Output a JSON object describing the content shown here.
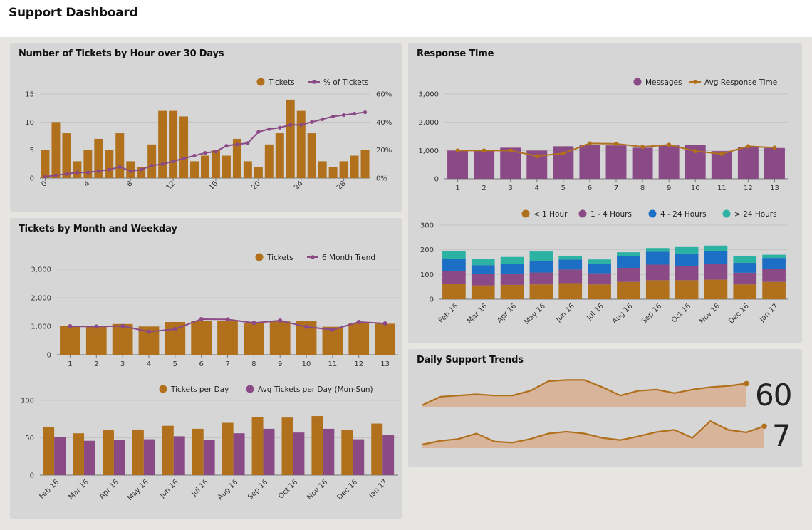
{
  "header": {
    "title": "Support Dashboard"
  },
  "colors": {
    "orange": "#b0701c",
    "purple": "#8a4a86",
    "blue": "#1c6fc4",
    "teal": "#2bb2a3",
    "fill": "#d7b49a"
  },
  "panels": {
    "tickets_by_hour": {
      "title": "Number of Tickets by Hour over 30 Days"
    },
    "tickets_by_month": {
      "title": "Tickets by Month and Weekday"
    },
    "response_time": {
      "title": "Response Time"
    },
    "daily_trends": {
      "title": "Daily Support Trends",
      "value1": "60",
      "value2": "7"
    }
  },
  "chart_data": [
    {
      "id": "hour",
      "type": "bar",
      "x": [
        0,
        1,
        2,
        3,
        4,
        5,
        6,
        7,
        8,
        9,
        10,
        11,
        12,
        13,
        14,
        15,
        16,
        17,
        18,
        19,
        20,
        21,
        22,
        23,
        24,
        25,
        26,
        27,
        28,
        29,
        30
      ],
      "series": [
        {
          "name": "Tickets",
          "type": "bar",
          "axis": "left",
          "values": [
            5,
            10,
            8,
            3,
            5,
            7,
            5,
            8,
            3,
            2,
            6,
            12,
            12,
            11,
            3,
            4,
            5,
            4,
            7,
            3,
            2,
            6,
            8,
            14,
            12,
            8,
            3,
            2,
            3,
            4,
            5
          ]
        },
        {
          "name": "% of Tickets",
          "type": "line",
          "axis": "right",
          "values": [
            1,
            2,
            3,
            4,
            4,
            5,
            6,
            8,
            5,
            6,
            9,
            10,
            12,
            14,
            16,
            18,
            19,
            23,
            24,
            25,
            33,
            35,
            36,
            38,
            38,
            40,
            42,
            44,
            45,
            46,
            47
          ]
        }
      ],
      "xticks": [
        "0",
        "4",
        "8",
        "12",
        "16",
        "20",
        "24",
        "28"
      ],
      "yticks_left": [
        "0",
        "5",
        "10",
        "15"
      ],
      "ylim_left": [
        0,
        15
      ],
      "yticks_right": [
        "0%",
        "20%",
        "40%",
        "60%"
      ],
      "ylim_right": [
        0,
        60
      ]
    },
    {
      "id": "weekday",
      "type": "bar",
      "categories": [
        "1",
        "2",
        "3",
        "4",
        "5",
        "6",
        "7",
        "8",
        "9",
        "10",
        "11",
        "12",
        "13"
      ],
      "series": [
        {
          "name": "Tickets",
          "type": "bar",
          "values": [
            1000,
            1000,
            1080,
            990,
            1150,
            1200,
            1180,
            1100,
            1170,
            1200,
            980,
            1120,
            1090
          ]
        },
        {
          "name": "6 Month Trend",
          "type": "line",
          "values": [
            1000,
            990,
            1010,
            810,
            900,
            1250,
            1240,
            1120,
            1200,
            980,
            880,
            1150,
            1100
          ]
        }
      ],
      "yticks": [
        "0",
        "1,000",
        "2,000",
        "3,000"
      ],
      "ylim": [
        0,
        3000
      ]
    },
    {
      "id": "perday",
      "type": "bar",
      "categories": [
        "Feb 16",
        "Mar 16",
        "Apr 16",
        "May 16",
        "Jun 16",
        "Jul 16",
        "Aug 16",
        "Sep 16",
        "Oct 16",
        "Nov 16",
        "Dec 16",
        "Jan 17"
      ],
      "series": [
        {
          "name": "Tickets per Day",
          "values": [
            64,
            56,
            60,
            61,
            66,
            62,
            70,
            78,
            77,
            79,
            60,
            69
          ]
        },
        {
          "name": "Avg Tickets per Day (Mon-Sun)",
          "values": [
            51,
            46,
            47,
            48,
            52,
            47,
            56,
            62,
            57,
            62,
            48,
            54
          ]
        }
      ],
      "yticks": [
        "0",
        "50",
        "100"
      ],
      "ylim": [
        0,
        125
      ]
    },
    {
      "id": "response",
      "type": "bar",
      "categories": [
        "1",
        "2",
        "3",
        "4",
        "5",
        "6",
        "7",
        "8",
        "9",
        "10",
        "11",
        "12",
        "13"
      ],
      "series": [
        {
          "name": "Messages",
          "type": "bar",
          "values": [
            1000,
            1000,
            1100,
            1000,
            1150,
            1200,
            1180,
            1100,
            1180,
            1200,
            980,
            1120,
            1090
          ]
        },
        {
          "name": "Avg Response Time",
          "type": "line",
          "values": [
            1000,
            1000,
            1000,
            800,
            900,
            1250,
            1240,
            1130,
            1200,
            980,
            880,
            1150,
            1100
          ]
        }
      ],
      "yticks": [
        "0",
        "1,000",
        "2,000",
        "3,000"
      ],
      "ylim": [
        0,
        3000
      ]
    },
    {
      "id": "stacked",
      "type": "bar",
      "stacked": true,
      "categories": [
        "Feb 16",
        "Mar 16",
        "Apr 16",
        "May 16",
        "Jun 16",
        "Jul 16",
        "Aug 16",
        "Sep 16",
        "Oct 16",
        "Nov 16",
        "Dec 16",
        "Jan 17"
      ],
      "series": [
        {
          "name": "< 1 Hour",
          "values": [
            62,
            56,
            58,
            60,
            65,
            60,
            70,
            77,
            77,
            79,
            60,
            70
          ]
        },
        {
          "name": "1 - 4 Hours",
          "values": [
            52,
            45,
            46,
            48,
            55,
            45,
            57,
            63,
            57,
            63,
            47,
            52
          ]
        },
        {
          "name": "4 - 24 Hours",
          "values": [
            50,
            37,
            40,
            45,
            40,
            37,
            48,
            52,
            50,
            52,
            40,
            45
          ]
        },
        {
          "name": "> 24 Hours",
          "values": [
            31,
            25,
            27,
            40,
            15,
            19,
            15,
            15,
            27,
            23,
            26,
            13
          ]
        }
      ],
      "yticks": [
        "0",
        "100",
        "200",
        "300"
      ],
      "ylim": [
        0,
        300
      ]
    },
    {
      "id": "trend1",
      "type": "area",
      "values": [
        42,
        49,
        50,
        51,
        50,
        50,
        54,
        62,
        63,
        63,
        57,
        50,
        54,
        55,
        52,
        55,
        57,
        58,
        60
      ],
      "ylim": [
        40,
        65
      ]
    },
    {
      "id": "trend2",
      "type": "area",
      "values": [
        2,
        3,
        3.5,
        5,
        2.8,
        2.5,
        3.5,
        5,
        5.5,
        5,
        3.8,
        3.2,
        4.2,
        5.4,
        6,
        3.8,
        8.4,
        6,
        5.3,
        7
      ],
      "ylim": [
        1,
        9
      ]
    }
  ]
}
